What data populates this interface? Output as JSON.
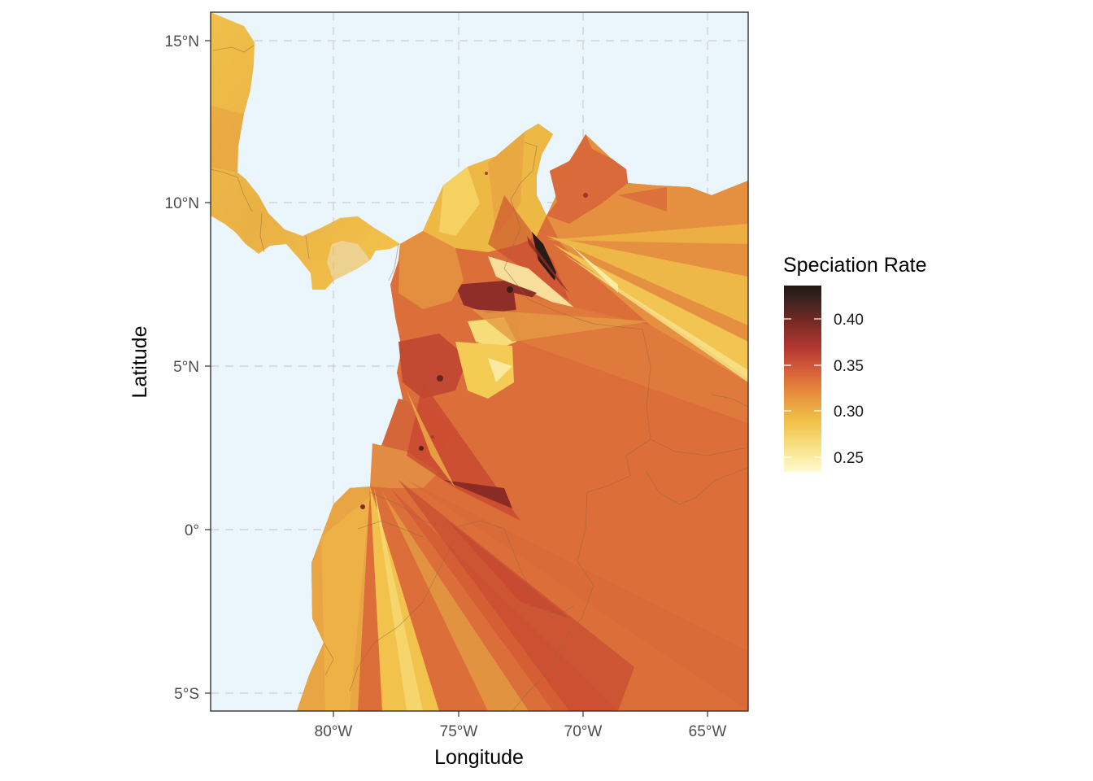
{
  "map": {
    "xlabel": "Longitude",
    "ylabel": "Latitude",
    "x_ticks": [
      {
        "value": -80,
        "label": "80°W"
      },
      {
        "value": -75,
        "label": "75°W"
      },
      {
        "value": -70,
        "label": "70°W"
      },
      {
        "value": -65,
        "label": "65°W"
      }
    ],
    "y_ticks": [
      {
        "value": 15,
        "label": "15°N"
      },
      {
        "value": 10,
        "label": "10°N"
      },
      {
        "value": 5,
        "label": "5°N"
      },
      {
        "value": 0,
        "label": "0°"
      },
      {
        "value": -5,
        "label": "5°S"
      }
    ],
    "xlim": [
      -84.9,
      -63.4
    ],
    "ylim": [
      -5.55,
      15.85
    ],
    "grid": "dashed major gridlines",
    "colors": {
      "ocean": "#eaf5fc",
      "gridline": "#c9ced3",
      "panel_border": "#333333",
      "country_border": "#8a6a3a",
      "tick": "#333333"
    }
  },
  "legend": {
    "title": "Speciation Rate",
    "placement": "right",
    "range": [
      0.22,
      0.44
    ],
    "ticks": [
      {
        "value": 0.4,
        "label": "0.40"
      },
      {
        "value": 0.35,
        "label": "0.35"
      },
      {
        "value": 0.3,
        "label": "0.30"
      },
      {
        "value": 0.25,
        "label": "0.25"
      }
    ],
    "gradient": [
      "#1f1812",
      "#3e2220",
      "#7a2a25",
      "#b63832",
      "#d9643a",
      "#e8963e",
      "#f1c247",
      "#f8e48c",
      "#fffad2"
    ]
  }
}
